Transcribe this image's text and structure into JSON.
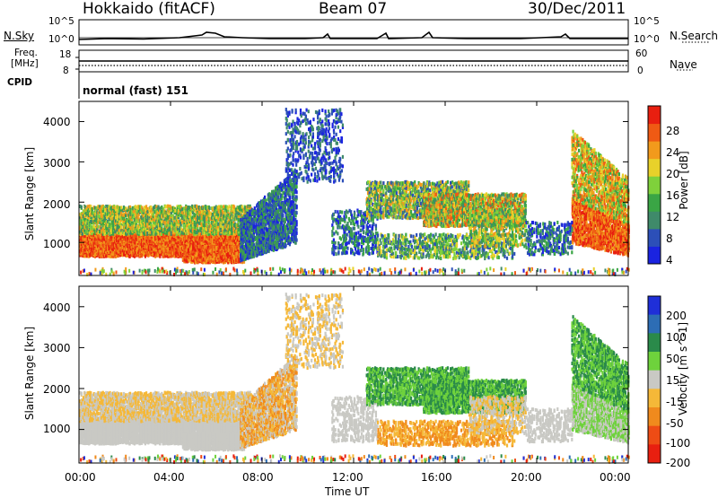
{
  "header": {
    "station": "Hokkaido (fitACF)",
    "beam": "Beam 07",
    "date": "30/Dec/2011"
  },
  "noise_panel": {
    "left_label": "N.Sky",
    "right_label": "N.Search",
    "left_ticks": [
      "10^5",
      "10^0"
    ],
    "right_ticks": [
      "10^5",
      "10^0"
    ]
  },
  "freq_panel": {
    "left_label_top": "Freq.",
    "left_label_bottom": "[MHz]",
    "left_ticks": [
      "18",
      "8"
    ],
    "right_label": "Nave",
    "right_ticks": [
      "60",
      "0"
    ]
  },
  "cpid": {
    "label": "CPID",
    "value": "normal (fast) 151"
  },
  "colors": {
    "power_scale": [
      "#1a23e0",
      "#2c4fb8",
      "#3f8a6a",
      "#3aa545",
      "#7fd13b",
      "#e8d12a",
      "#f29a1c",
      "#ef5a14",
      "#e81f10"
    ],
    "velocity_scale": [
      "#1f2fd8",
      "#2d6db5",
      "#2a8a4a",
      "#6ed23c",
      "#c9c9c4",
      "#f5b838",
      "#f08a1d",
      "#ee4c15",
      "#e81f10"
    ]
  },
  "chart_data": [
    {
      "type": "heatmap",
      "name": "power",
      "xlabel": "",
      "ylabel": "Slant Range [km]",
      "yticks": [
        "1000",
        "2000",
        "3000",
        "4000"
      ],
      "ylim": [
        180,
        4500
      ],
      "colorbar_label": "Power [dB]",
      "colorbar_ticks": [
        "4",
        "8",
        "12",
        "16",
        "20",
        "24",
        "28"
      ],
      "regions": [
        {
          "t": [
            0,
            7.2
          ],
          "range": [
            600,
            1300
          ],
          "level": "high"
        },
        {
          "t": [
            0,
            7.5
          ],
          "range": [
            1300,
            1900
          ],
          "level": "medium"
        },
        {
          "t": [
            7.2,
            9.8
          ],
          "range": [
            900,
            2600
          ],
          "level": "low"
        },
        {
          "t": [
            13,
            20
          ],
          "range": [
            1400,
            2700
          ],
          "level": "medium"
        },
        {
          "t": [
            21.5,
            24
          ],
          "range": [
            700,
            2300
          ],
          "level": "high"
        }
      ]
    },
    {
      "type": "heatmap",
      "name": "velocity",
      "xlabel": "Time UT",
      "ylabel": "Slant Range [km]",
      "yticks": [
        "1000",
        "2000",
        "3000",
        "4000"
      ],
      "ylim": [
        180,
        4500
      ],
      "xticks": [
        "00:00",
        "04:00",
        "08:00",
        "12:00",
        "16:00",
        "20:00",
        "00:00"
      ],
      "colorbar_label": "Velocity [m s^-1]",
      "colorbar_ticks": [
        "200",
        "100",
        "50",
        "15",
        "-15",
        "-50",
        "-100",
        "-200"
      ],
      "regions": [
        {
          "t": [
            0,
            7.5
          ],
          "range": [
            600,
            1900
          ],
          "level": "near-zero"
        },
        {
          "t": [
            7.2,
            9.8
          ],
          "range": [
            900,
            2600
          ],
          "level": "mixed"
        },
        {
          "t": [
            13,
            20
          ],
          "range": [
            1300,
            2700
          ],
          "level": "positive"
        },
        {
          "t": [
            21.5,
            24
          ],
          "range": [
            700,
            2700
          ],
          "level": "positive"
        }
      ]
    }
  ]
}
